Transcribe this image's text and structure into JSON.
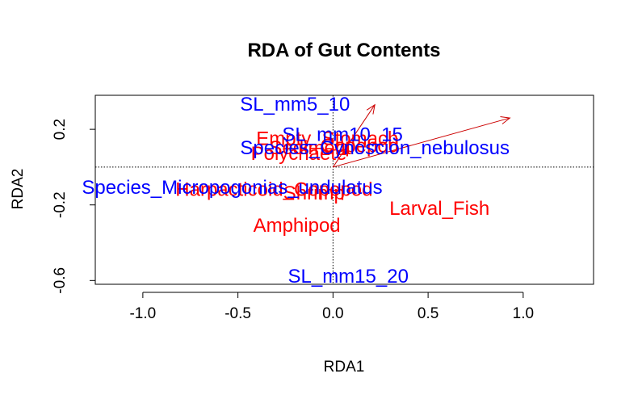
{
  "chart_data": {
    "type": "scatter",
    "title": "RDA of Gut Contents",
    "xlabel": "RDA1",
    "ylabel": "RDA2",
    "xlim": [
      -1.25,
      1.37
    ],
    "ylim": [
      -0.62,
      0.38
    ],
    "xticks": [
      -1.0,
      -0.5,
      0.0,
      0.5,
      1.0
    ],
    "xtick_labels": [
      "-1.0",
      "-0.5",
      "0.0",
      "0.5",
      "1.0"
    ],
    "yticks": [
      0.2,
      -0.2,
      -0.6
    ],
    "ytick_labels": [
      "0.2",
      "-0.2",
      "-0.6"
    ],
    "reference_lines": {
      "x": 0,
      "y": 0,
      "style": "dotted"
    },
    "colors": {
      "response": "#ff0000",
      "explanatory": "#0000ff",
      "arrow": "#cc0000",
      "axes": "#000000"
    },
    "arrows": [
      {
        "from": [
          0,
          0
        ],
        "to": [
          0.22,
          0.33
        ]
      },
      {
        "from": [
          0,
          0
        ],
        "to": [
          0.93,
          0.26
        ]
      }
    ],
    "explanatory_labels": [
      {
        "text": "SL_mm5_10",
        "x": -0.2,
        "y": 0.33
      },
      {
        "text": "SL_mm10_15",
        "x": 0.05,
        "y": 0.17
      },
      {
        "text": "Species_Cynoscion_nebulosus",
        "x": 0.22,
        "y": 0.1
      },
      {
        "text": "Species_Micropogonias_undulatus",
        "x": -0.53,
        "y": -0.11
      },
      {
        "text": "SL_mm15_20",
        "x": 0.08,
        "y": -0.58
      }
    ],
    "response_labels": [
      {
        "text": "Empty_Stomach",
        "x": -0.03,
        "y": 0.15
      },
      {
        "text": "Sediment",
        "x": -0.12,
        "y": 0.1
      },
      {
        "text": "Copepod",
        "x": 0.14,
        "y": 0.11
      },
      {
        "text": "Polychaete",
        "x": -0.18,
        "y": 0.07
      },
      {
        "text": "Harpacticoid_Copepod",
        "x": -0.31,
        "y": -0.12
      },
      {
        "text": "Shrimp",
        "x": -0.1,
        "y": -0.14
      },
      {
        "text": "Larval_Fish",
        "x": 0.56,
        "y": -0.22
      },
      {
        "text": "Amphipod",
        "x": -0.19,
        "y": -0.31
      }
    ]
  }
}
